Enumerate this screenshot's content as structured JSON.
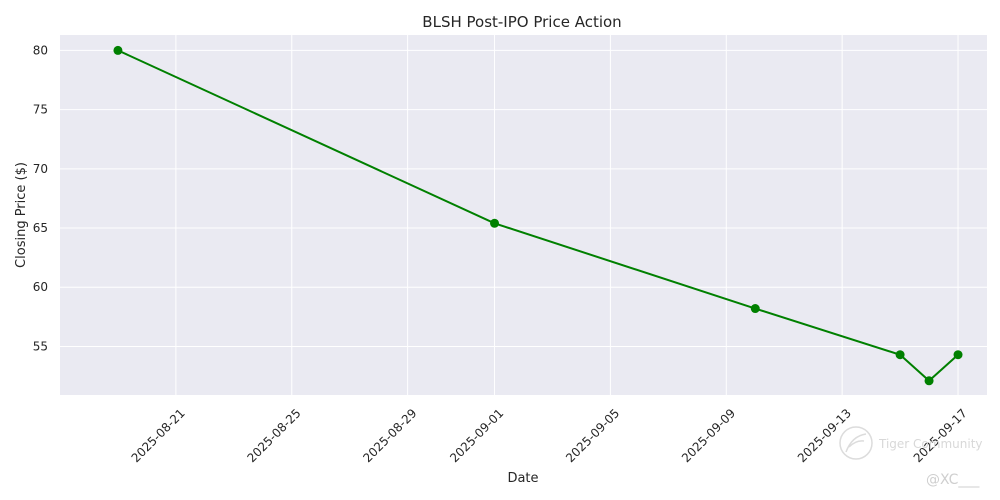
{
  "chart_data": {
    "type": "line",
    "title": "BLSH Post-IPO Price Action",
    "xlabel": "Date",
    "ylabel": "Closing Price ($)",
    "x_ticks": [
      "2025-08-21",
      "2025-08-25",
      "2025-08-29",
      "2025-09-01",
      "2025-09-05",
      "2025-09-09",
      "2025-09-13",
      "2025-09-17"
    ],
    "y_ticks": [
      55,
      60,
      65,
      70,
      75,
      80
    ],
    "ylim": [
      50.9,
      81.3
    ],
    "xlim": [
      "2025-08-17",
      "2025-09-18"
    ],
    "grid": true,
    "series": [
      {
        "color": "#008000",
        "marker": "circle",
        "points": [
          {
            "x": "2025-08-19",
            "y": 80.0
          },
          {
            "x": "2025-09-01",
            "y": 65.4
          },
          {
            "x": "2025-09-10",
            "y": 58.2
          },
          {
            "x": "2025-09-15",
            "y": 54.3
          },
          {
            "x": "2025-09-16",
            "y": 52.1
          },
          {
            "x": "2025-09-17",
            "y": 54.3
          }
        ]
      }
    ]
  },
  "watermark": {
    "brand": "Tiger Community",
    "user": "@XC___",
    "icon": "tiger-logo-icon"
  },
  "colors": {
    "plot_background": "#eaeaf2",
    "grid": "#ffffff",
    "line": "#008000"
  }
}
